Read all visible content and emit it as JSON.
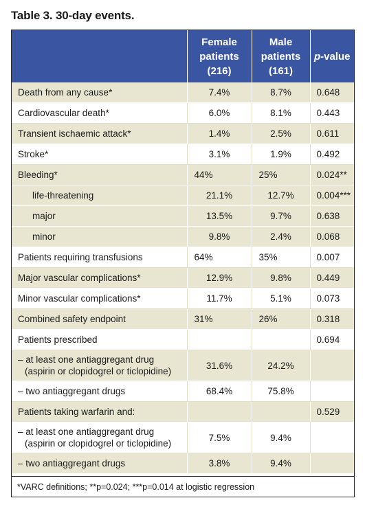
{
  "title": "Table 3. 30-day events.",
  "header": {
    "female_line1": "Female",
    "female_line2": "patients",
    "female_line3": "(216)",
    "male_line1": "Male",
    "male_line2": "patients",
    "male_line3": "(161)",
    "pvalue_italic": "p",
    "pvalue_rest": "-value"
  },
  "rows": [
    {
      "label": "Death from any cause*",
      "female": "7.4%",
      "male": "8.7%",
      "p": "0.648"
    },
    {
      "label": "Cardiovascular death*",
      "female": "6.0%",
      "male": "8.1%",
      "p": "0.443"
    },
    {
      "label": "Transient ischaemic attack*",
      "female": "1.4%",
      "male": "2.5%",
      "p": "0.611"
    },
    {
      "label": "Stroke*",
      "female": "3.1%",
      "male": "1.9%",
      "p": "0.492"
    },
    {
      "label": "Bleeding*",
      "female": "44%",
      "male": "25%",
      "p": "0.024**"
    },
    {
      "label": "life-threatening",
      "female": "21.1%",
      "male": "12.7%",
      "p": "0.004***"
    },
    {
      "label": "major",
      "female": "13.5%",
      "male": "9.7%",
      "p": "0.638"
    },
    {
      "label": "minor",
      "female": "9.8%",
      "male": "2.4%",
      "p": "0.068"
    },
    {
      "label": "Patients requiring transfusions",
      "female": "64%",
      "male": "35%",
      "p": "0.007"
    },
    {
      "label": "Major vascular complications*",
      "female": "12.9%",
      "male": "9.8%",
      "p": "0.449"
    },
    {
      "label": "Minor vascular complications*",
      "female": "11.7%",
      "male": "5.1%",
      "p": "0.073"
    },
    {
      "label": "Combined safety endpoint",
      "female": "31%",
      "male": "26%",
      "p": "0.318"
    },
    {
      "label": "Patients prescribed",
      "female": "",
      "male": "",
      "p": "0.694"
    },
    {
      "label_line1": "– at least one antiaggregant drug",
      "label_line2": "(aspirin or clopidogrel or ticlopidine)",
      "female": "31.6%",
      "male": "24.2%",
      "p": ""
    },
    {
      "label": "– two antiaggregant drugs",
      "female": "68.4%",
      "male": "75.8%",
      "p": ""
    },
    {
      "label": "Patients taking warfarin and:",
      "female": "",
      "male": "",
      "p": "0.529"
    },
    {
      "label_line1": "– at least one antiaggregant drug",
      "label_line2": "(aspirin or clopidogrel or ticlopidine)",
      "female": "7.5%",
      "male": "9.4%",
      "p": ""
    },
    {
      "label": "– two antiaggregant drugs",
      "female": "3.8%",
      "male": "9.4%",
      "p": ""
    }
  ],
  "footnote": "*VARC definitions; **p=0.024; ***p=0.014 at logistic regression"
}
